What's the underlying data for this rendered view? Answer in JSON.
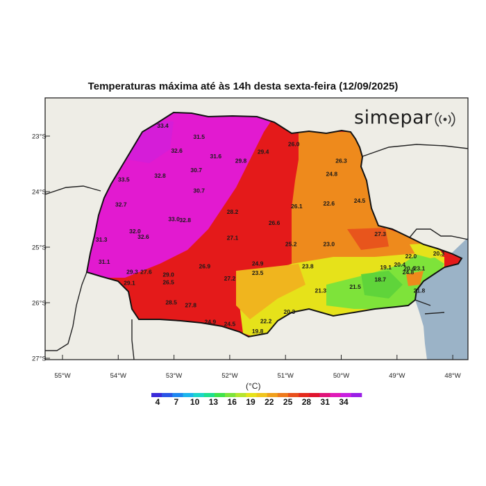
{
  "title": "Temperaturas máxima até às 14h desta sexta-feira (12/09/2025)",
  "brand": "simepar",
  "lat_ticks": [
    "23°S",
    "24°S",
    "25°S",
    "26°S",
    "27°S"
  ],
  "lon_ticks": [
    "55°W",
    "54°W",
    "53°W",
    "52°W",
    "51°W",
    "50°W",
    "49°W",
    "48°W"
  ],
  "unit": "(°C)",
  "colorbar_labels": [
    "4",
    "7",
    "10",
    "13",
    "16",
    "19",
    "22",
    "25",
    "28",
    "31",
    "34"
  ],
  "colors": {
    "ocean": "#9bb3c7",
    "land_outside": "#eeede6",
    "magenta": "#e21ad0",
    "red": "#e41a1a",
    "orange": "#ee8a1c",
    "yellow": "#e6e21a",
    "green": "#7ee33a"
  },
  "stations": [
    {
      "label": "33.4",
      "lon": -53.2,
      "lat": -22.85
    },
    {
      "label": "31.5",
      "lon": -52.55,
      "lat": -23.05
    },
    {
      "label": "32.6",
      "lon": -52.95,
      "lat": -23.3
    },
    {
      "label": "31.6",
      "lon": -52.25,
      "lat": -23.4
    },
    {
      "label": "29.8",
      "lon": -51.8,
      "lat": -23.48
    },
    {
      "label": "29.4",
      "lon": -51.4,
      "lat": -23.32
    },
    {
      "label": "26.0",
      "lon": -50.85,
      "lat": -23.18
    },
    {
      "label": "26.3",
      "lon": -50.0,
      "lat": -23.48
    },
    {
      "label": "30.7",
      "lon": -52.6,
      "lat": -23.65
    },
    {
      "label": "32.8",
      "lon": -53.25,
      "lat": -23.75
    },
    {
      "label": "33.5",
      "lon": -53.9,
      "lat": -23.82
    },
    {
      "label": "24.8",
      "lon": -50.17,
      "lat": -23.72
    },
    {
      "label": "30.7",
      "lon": -52.55,
      "lat": -24.02
    },
    {
      "label": "32.7",
      "lon": -53.95,
      "lat": -24.27
    },
    {
      "label": "22.6",
      "lon": -50.22,
      "lat": -24.25
    },
    {
      "label": "24.5",
      "lon": -49.67,
      "lat": -24.2
    },
    {
      "label": "28.2",
      "lon": -51.95,
      "lat": -24.4
    },
    {
      "label": "26.1",
      "lon": -50.8,
      "lat": -24.3
    },
    {
      "label": "33.0",
      "lon": -53.0,
      "lat": -24.53
    },
    {
      "label": "32.8",
      "lon": -52.8,
      "lat": -24.55
    },
    {
      "label": "26.6",
      "lon": -51.2,
      "lat": -24.6
    },
    {
      "label": "32.0",
      "lon": -53.7,
      "lat": -24.75
    },
    {
      "label": "32.6",
      "lon": -53.55,
      "lat": -24.85
    },
    {
      "label": "31.3",
      "lon": -54.3,
      "lat": -24.9
    },
    {
      "label": "27.1",
      "lon": -51.95,
      "lat": -24.87
    },
    {
      "label": "27.3",
      "lon": -49.3,
      "lat": -24.8
    },
    {
      "label": "25.2",
      "lon": -50.9,
      "lat": -24.98
    },
    {
      "label": "23.0",
      "lon": -50.22,
      "lat": -24.98
    },
    {
      "label": "22.0",
      "lon": -48.75,
      "lat": -25.2
    },
    {
      "label": "20.3",
      "lon": -48.25,
      "lat": -25.15
    },
    {
      "label": "31.1",
      "lon": -54.25,
      "lat": -25.3
    },
    {
      "label": "26.9",
      "lon": -52.45,
      "lat": -25.38
    },
    {
      "label": "24.9",
      "lon": -51.5,
      "lat": -25.33
    },
    {
      "label": "23.8",
      "lon": -50.6,
      "lat": -25.38
    },
    {
      "label": "20.4",
      "lon": -48.95,
      "lat": -25.35
    },
    {
      "label": "19.1",
      "lon": -49.2,
      "lat": -25.4
    },
    {
      "label": "20.4",
      "lon": -48.78,
      "lat": -25.42
    },
    {
      "label": "23.1",
      "lon": -48.6,
      "lat": -25.42
    },
    {
      "label": "24.8",
      "lon": -48.8,
      "lat": -25.49
    },
    {
      "label": "29.3",
      "lon": -53.75,
      "lat": -25.48
    },
    {
      "label": "27.6",
      "lon": -53.5,
      "lat": -25.48
    },
    {
      "label": "29.0",
      "lon": -53.1,
      "lat": -25.53
    },
    {
      "label": "23.5",
      "lon": -51.5,
      "lat": -25.5
    },
    {
      "label": "27.2",
      "lon": -52.0,
      "lat": -25.6
    },
    {
      "label": "18.7",
      "lon": -49.3,
      "lat": -25.62
    },
    {
      "label": "29.1",
      "lon": -53.8,
      "lat": -25.68
    },
    {
      "label": "26.5",
      "lon": -53.1,
      "lat": -25.67
    },
    {
      "label": "21.5",
      "lon": -49.75,
      "lat": -25.75
    },
    {
      "label": "21.3",
      "lon": -50.37,
      "lat": -25.82
    },
    {
      "label": "21.8",
      "lon": -48.6,
      "lat": -25.82
    },
    {
      "label": "28.5",
      "lon": -53.05,
      "lat": -26.03
    },
    {
      "label": "27.8",
      "lon": -52.7,
      "lat": -26.08
    },
    {
      "label": "20.3",
      "lon": -50.93,
      "lat": -26.2
    },
    {
      "label": "24.9",
      "lon": -52.35,
      "lat": -26.38
    },
    {
      "label": "24.5",
      "lon": -52.0,
      "lat": -26.42
    },
    {
      "label": "22.2",
      "lon": -51.35,
      "lat": -26.37
    },
    {
      "label": "19.8",
      "lon": -51.5,
      "lat": -26.55
    }
  ]
}
